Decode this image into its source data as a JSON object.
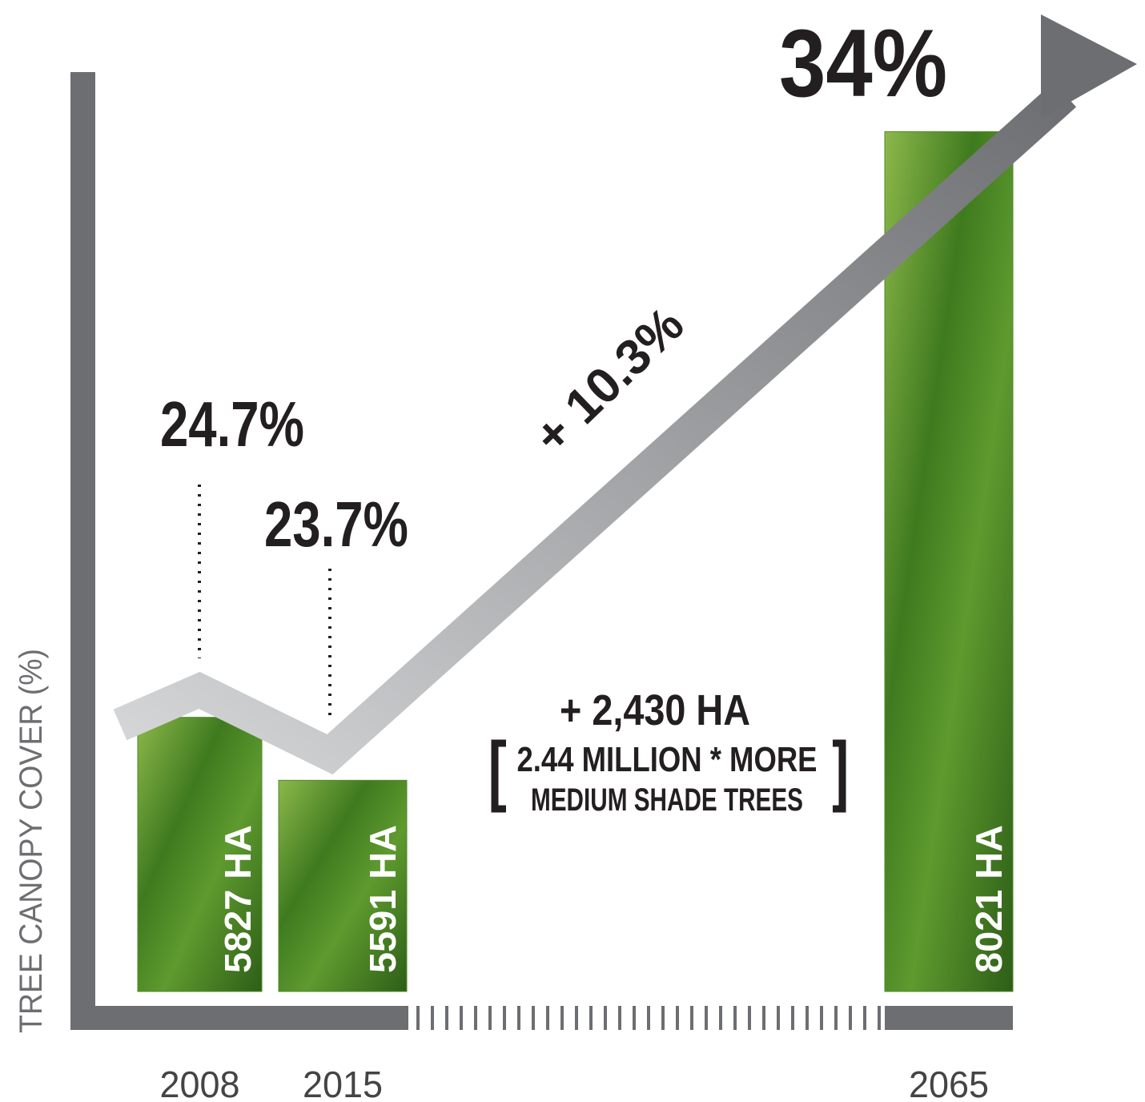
{
  "chart_data": {
    "type": "bar",
    "y_axis_label": "TREE CANOPY COVER (%)",
    "categories": [
      "2008",
      "2015",
      "2065"
    ],
    "bars": {
      "values": [
        5827,
        5591,
        8021
      ],
      "value_labels": [
        "5827 HA",
        "5591 HA",
        "8021 HA"
      ],
      "color": "#4f8a2a"
    },
    "line": {
      "values": [
        24.7,
        23.7,
        34
      ],
      "value_labels": [
        "24.7%",
        "23.7%",
        "34%"
      ],
      "color": "#8c8d90"
    },
    "ylim": [
      20,
      35
    ],
    "y2lim": [
      4800,
      8400
    ],
    "change_label": "+ 10.3%",
    "added_area": "+ 2,430 HA",
    "note_lines": [
      "2.44 MILLION * MORE",
      "MEDIUM SHADE TREES"
    ]
  }
}
